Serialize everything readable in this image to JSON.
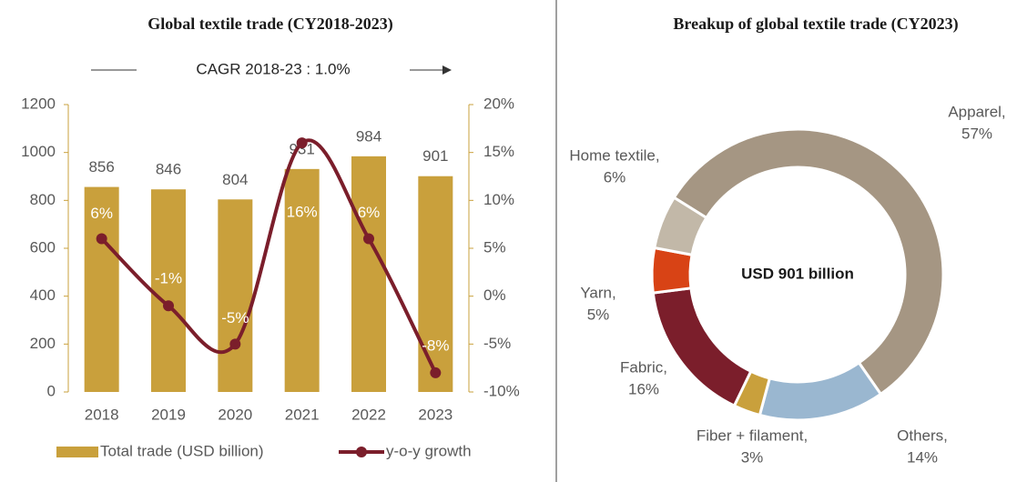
{
  "chart_data": [
    {
      "type": "combo",
      "title": "Global textile trade (CY2018-2023)",
      "annotation": "CAGR 2018-23 : 1.0%",
      "categories": [
        "2018",
        "2019",
        "2020",
        "2021",
        "2022",
        "2023"
      ],
      "series": [
        {
          "name": "Total trade (USD billion)",
          "type": "bar",
          "color": "#c9a03c",
          "values": [
            856,
            846,
            804,
            931,
            984,
            901
          ]
        },
        {
          "name": "y-o-y growth",
          "type": "line",
          "axis": "y2",
          "color": "#7b1e2b",
          "values": [
            6,
            -1,
            -5,
            16,
            6,
            -8
          ],
          "value_labels": [
            "6%",
            "-1%",
            "-5%",
            "16%",
            "6%",
            "-8%"
          ]
        }
      ],
      "ylim": [
        0,
        1200
      ],
      "yticks": [
        0,
        200,
        400,
        600,
        800,
        1000,
        1200
      ],
      "y2lim": [
        -10,
        20
      ],
      "y2ticks": [
        {
          "value": -10,
          "label": "-10%"
        },
        {
          "value": -5,
          "label": "-5%"
        },
        {
          "value": 0,
          "label": "0%"
        },
        {
          "value": 5,
          "label": "5%"
        },
        {
          "value": 10,
          "label": "10%"
        },
        {
          "value": 15,
          "label": "15%"
        },
        {
          "value": 20,
          "label": "20%"
        }
      ],
      "legend": "bottom"
    },
    {
      "type": "donut",
      "title": "Breakup of global textile trade (CY2023)",
      "center_label": "USD 901 billion",
      "categories": [
        "Apparel,",
        "Others,",
        "Fiber + filament,",
        "Fabric,",
        "Yarn,",
        "Home textile,"
      ],
      "values": [
        57,
        14,
        3,
        16,
        5,
        6
      ],
      "value_labels": [
        "57%",
        "14%",
        "3%",
        "16%",
        "5%",
        "6%"
      ],
      "colors": [
        "#a59683",
        "#9ab7d0",
        "#c9a03c",
        "#7b1e2b",
        "#d84315",
        "#c2b8a8"
      ]
    }
  ]
}
